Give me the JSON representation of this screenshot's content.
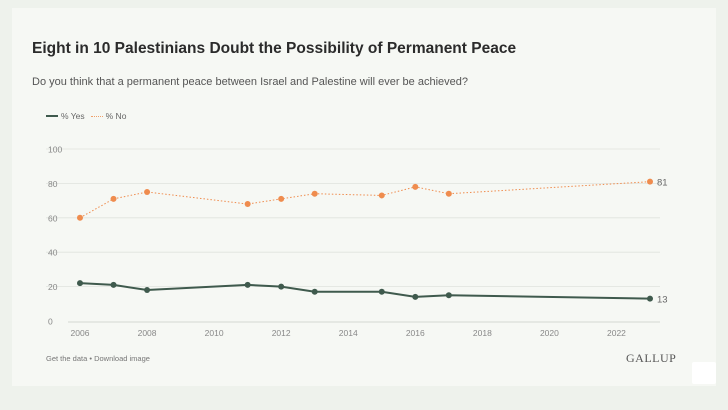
{
  "title": "Eight in 10 Palestinians Doubt the Possibility of Permanent Peace",
  "subtitle": "Do you think that a permanent peace between Israel and Palestine will ever be achieved?",
  "legend": {
    "yes": "% Yes",
    "no": "% No"
  },
  "footer": {
    "links": "Get the data • Download image",
    "brand": "GALLUP"
  },
  "colors": {
    "yes": "#3f5a4d",
    "no": "#ef8c4e",
    "grid": "#dfe3dd",
    "text": "#888888"
  },
  "chart_data": {
    "type": "line",
    "title": "Eight in 10 Palestinians Doubt the Possibility of Permanent Peace",
    "xlabel": "",
    "ylabel": "",
    "xlim": [
      2006,
      2023
    ],
    "ylim": [
      0,
      100
    ],
    "x_ticks": [
      2006,
      2008,
      2010,
      2012,
      2014,
      2016,
      2018,
      2020,
      2022
    ],
    "y_ticks": [
      0,
      20,
      40,
      60,
      80,
      100
    ],
    "grid": true,
    "legend_position": "top-left",
    "series": [
      {
        "name": "% Yes",
        "style": "solid",
        "points": [
          [
            2006,
            22
          ],
          [
            2007,
            21
          ],
          [
            2008,
            18
          ],
          [
            2011,
            21
          ],
          [
            2012,
            20
          ],
          [
            2013,
            17
          ],
          [
            2015,
            17
          ],
          [
            2016,
            14
          ],
          [
            2017,
            15
          ],
          [
            2023,
            13
          ]
        ],
        "end_label": "13"
      },
      {
        "name": "% No",
        "style": "dotted",
        "points": [
          [
            2006,
            60
          ],
          [
            2007,
            71
          ],
          [
            2008,
            75
          ],
          [
            2011,
            68
          ],
          [
            2012,
            71
          ],
          [
            2013,
            74
          ],
          [
            2015,
            73
          ],
          [
            2016,
            78
          ],
          [
            2017,
            74
          ],
          [
            2023,
            81
          ]
        ],
        "end_label": "81"
      }
    ]
  }
}
